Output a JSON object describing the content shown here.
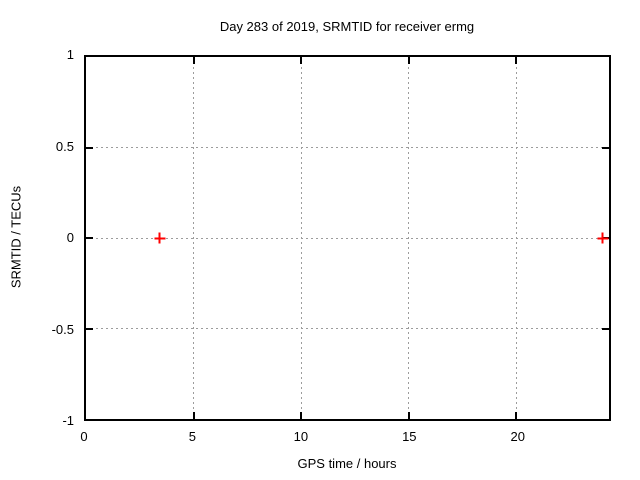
{
  "chart_data": {
    "type": "scatter",
    "title": "Day 283 of 2019, SRMTID for receiver ermg",
    "xlabel": "GPS time / hours",
    "ylabel": "SRMTID / TECUs",
    "x_range": [
      0,
      24.3
    ],
    "y_range": [
      -1,
      1
    ],
    "x_ticks": [
      {
        "value": 0,
        "label": "0"
      },
      {
        "value": 5,
        "label": "5"
      },
      {
        "value": 10,
        "label": "10"
      },
      {
        "value": 15,
        "label": "15"
      },
      {
        "value": 20,
        "label": "20"
      }
    ],
    "y_ticks": [
      {
        "value": -1,
        "label": "-1"
      },
      {
        "value": -0.5,
        "label": "-0.5"
      },
      {
        "value": 0,
        "label": "0"
      },
      {
        "value": 0.5,
        "label": "0.5"
      },
      {
        "value": 1,
        "label": "1"
      }
    ],
    "grid": true,
    "legend": "none",
    "series": [
      {
        "name": "SRMTID",
        "marker": "plus",
        "color": "#ff0000",
        "points": [
          {
            "x": 3.43,
            "y": 0
          },
          {
            "x": 24.0,
            "y": 0
          }
        ]
      }
    ]
  },
  "colors": {
    "background": "#ffffff",
    "text": "#000000",
    "border": "#000000",
    "grid": "#9c9c9c",
    "marker": "#ff0000"
  }
}
